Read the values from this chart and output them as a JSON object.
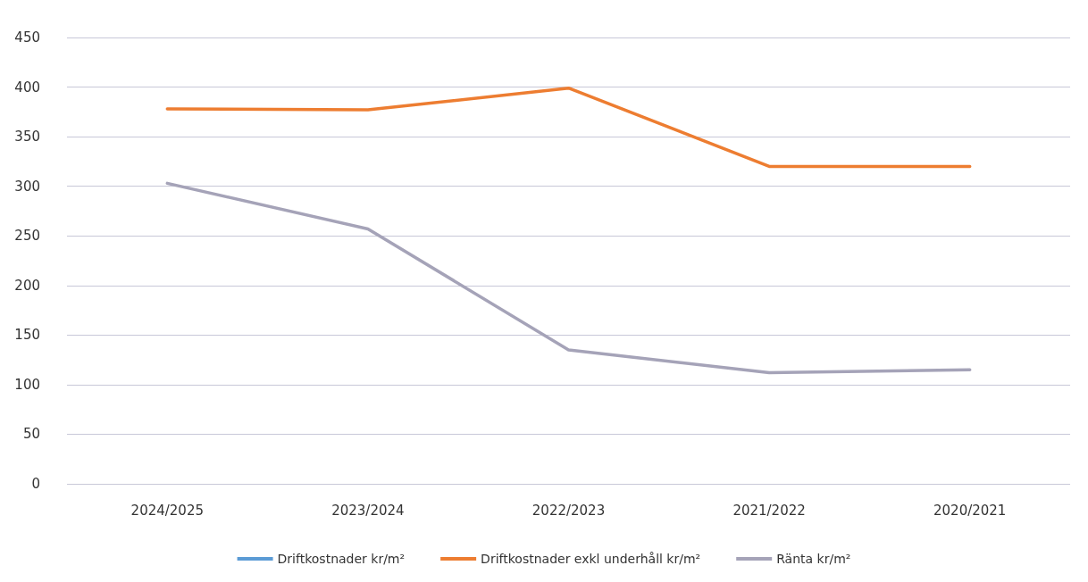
{
  "chart_data": {
    "type": "line",
    "categories": [
      "2024/2025",
      "2023/2024",
      "2022/2023",
      "2021/2022",
      "2020/2021"
    ],
    "series": [
      {
        "name": "Driftkostnader kr/m²",
        "color": "#5b9bd5",
        "values": [
          null,
          null,
          null,
          null,
          null
        ]
      },
      {
        "name": "Driftkostnader exkl underhåll kr/m²",
        "color": "#ed7d31",
        "values": [
          378,
          377,
          399,
          320,
          320
        ]
      },
      {
        "name": "Ränta kr/m²",
        "color": "#a5a3b8",
        "values": [
          303,
          257,
          135,
          112,
          115
        ]
      }
    ],
    "ylim": [
      0,
      450
    ],
    "yticks": [
      0,
      50,
      100,
      150,
      200,
      250,
      300,
      350,
      400,
      450
    ],
    "grid": "y",
    "legend": "bottom",
    "marker": "none",
    "line_style": "solid"
  }
}
